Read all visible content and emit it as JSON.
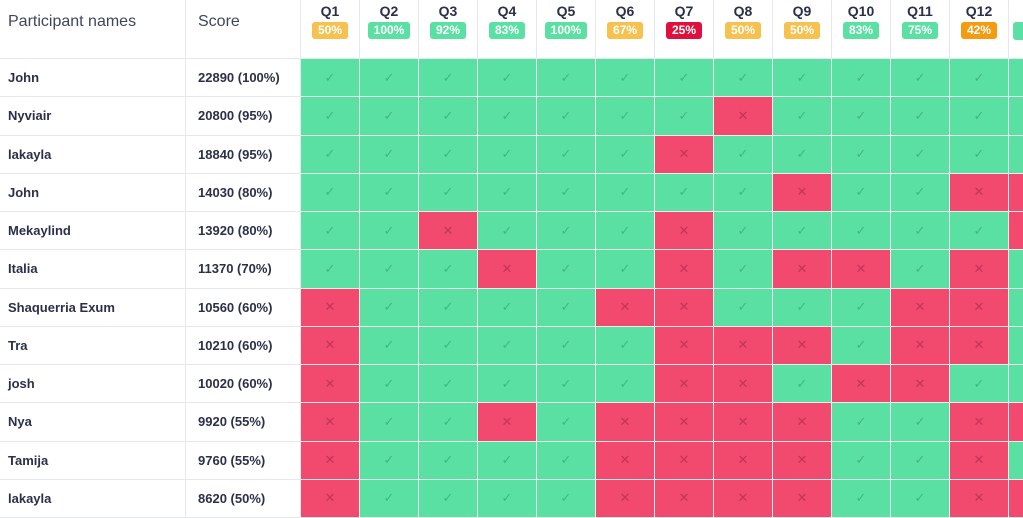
{
  "header": {
    "participant_label": "Participant names",
    "score_label": "Score"
  },
  "colors": {
    "correct": "#5be0a3",
    "wrong": "#f2496f",
    "badge_green": "#5be0a3",
    "badge_yellow": "#f6c14e",
    "badge_orange": "#f39c12",
    "badge_red": "#e0103e"
  },
  "icons": {
    "correct": "check-icon",
    "wrong": "x-icon"
  },
  "questions": [
    {
      "label": "Q1",
      "pct": "50%",
      "color": "#f6c14e"
    },
    {
      "label": "Q2",
      "pct": "100%",
      "color": "#5be0a3"
    },
    {
      "label": "Q3",
      "pct": "92%",
      "color": "#5be0a3"
    },
    {
      "label": "Q4",
      "pct": "83%",
      "color": "#5be0a3"
    },
    {
      "label": "Q5",
      "pct": "100%",
      "color": "#5be0a3"
    },
    {
      "label": "Q6",
      "pct": "67%",
      "color": "#f6c14e"
    },
    {
      "label": "Q7",
      "pct": "25%",
      "color": "#e0103e"
    },
    {
      "label": "Q8",
      "pct": "50%",
      "color": "#f6c14e"
    },
    {
      "label": "Q9",
      "pct": "50%",
      "color": "#f6c14e"
    },
    {
      "label": "Q10",
      "pct": "83%",
      "color": "#5be0a3"
    },
    {
      "label": "Q11",
      "pct": "75%",
      "color": "#5be0a3"
    },
    {
      "label": "Q12",
      "pct": "42%",
      "color": "#f39c12"
    }
  ],
  "participants": [
    {
      "name": "John",
      "score": "22890 (100%)",
      "answers": [
        1,
        1,
        1,
        1,
        1,
        1,
        1,
        1,
        1,
        1,
        1,
        1
      ],
      "edge": 1
    },
    {
      "name": "Nyviair",
      "score": "20800 (95%)",
      "answers": [
        1,
        1,
        1,
        1,
        1,
        1,
        1,
        0,
        1,
        1,
        1,
        1
      ],
      "edge": 1
    },
    {
      "name": "lakayla",
      "score": "18840 (95%)",
      "answers": [
        1,
        1,
        1,
        1,
        1,
        1,
        0,
        1,
        1,
        1,
        1,
        1
      ],
      "edge": 1
    },
    {
      "name": "John",
      "score": "14030 (80%)",
      "answers": [
        1,
        1,
        1,
        1,
        1,
        1,
        1,
        1,
        0,
        1,
        1,
        0
      ],
      "edge": 0
    },
    {
      "name": "Mekaylind",
      "score": "13920 (80%)",
      "answers": [
        1,
        1,
        0,
        1,
        1,
        1,
        0,
        1,
        1,
        1,
        1,
        1
      ],
      "edge": 0
    },
    {
      "name": "Italia",
      "score": "11370 (70%)",
      "answers": [
        1,
        1,
        1,
        0,
        1,
        1,
        0,
        1,
        0,
        0,
        1,
        0
      ],
      "edge": 1
    },
    {
      "name": "Shaquerria Exum",
      "score": "10560 (60%)",
      "answers": [
        0,
        1,
        1,
        1,
        1,
        0,
        0,
        1,
        1,
        1,
        0,
        0
      ],
      "edge": 1
    },
    {
      "name": "Tra",
      "score": "10210 (60%)",
      "answers": [
        0,
        1,
        1,
        1,
        1,
        1,
        0,
        0,
        0,
        1,
        0,
        0
      ],
      "edge": 1
    },
    {
      "name": "josh",
      "score": "10020 (60%)",
      "answers": [
        0,
        1,
        1,
        1,
        1,
        1,
        0,
        0,
        1,
        0,
        0,
        1
      ],
      "edge": 1
    },
    {
      "name": "Nya",
      "score": "9920 (55%)",
      "answers": [
        0,
        1,
        1,
        0,
        1,
        0,
        0,
        0,
        0,
        1,
        1,
        0
      ],
      "edge": 0
    },
    {
      "name": "Tamija",
      "score": "9760 (55%)",
      "answers": [
        0,
        1,
        1,
        1,
        1,
        0,
        0,
        0,
        0,
        1,
        1,
        0
      ],
      "edge": 1
    },
    {
      "name": "lakayla",
      "score": "8620 (50%)",
      "answers": [
        0,
        1,
        1,
        1,
        1,
        0,
        0,
        0,
        0,
        1,
        1,
        0
      ],
      "edge": 0
    }
  ]
}
